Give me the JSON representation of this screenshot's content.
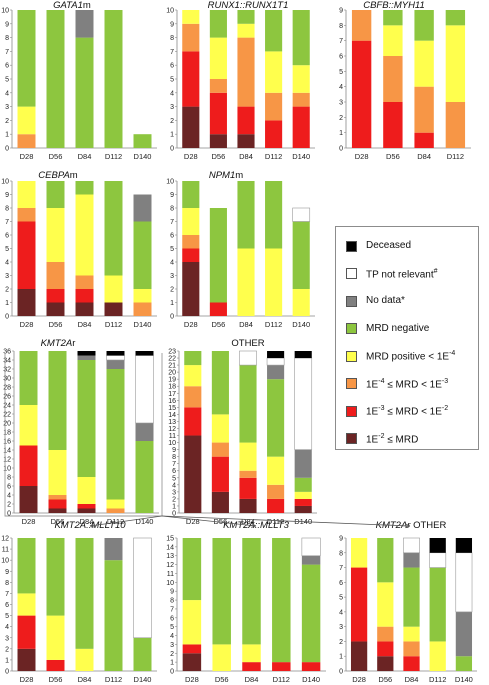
{
  "colors": {
    "Deceased": "#000000",
    "TP not relevant": "#ffffff",
    "No data": "#808080",
    "MRD negative": "#8dc63f",
    "MRD positive < 1E-4": "#ffff4d",
    "1E-4 <= MRD < 1E-3": "#f79646",
    "1E-3 <= MRD < 1E-2": "#ee1c1c",
    "1E-2 <= MRD": "#6b2424"
  },
  "legend": {
    "items": [
      {
        "key": "Deceased",
        "label": "Deceased"
      },
      {
        "key": "TP not relevant",
        "label": "TP not relevant",
        "sup": "#"
      },
      {
        "key": "No data",
        "label": "No data*"
      },
      {
        "key": "MRD negative",
        "label": "MRD negative"
      },
      {
        "key": "MRD positive < 1E-4",
        "label": "MRD positive < 1E",
        "sup": "-4"
      },
      {
        "key": "1E-4 <= MRD < 1E-3",
        "label": "1E",
        "sup": "-4",
        "label2": " ≤ MRD < 1E",
        "sup2": "-3"
      },
      {
        "key": "1E-3 <= MRD < 1E-2",
        "label": "1E",
        "sup": "-3",
        "label2": " ≤ MRD < 1E",
        "sup2": "-2"
      },
      {
        "key": "1E-2 <= MRD",
        "label": "1E",
        "sup": "-2",
        "label2": " ≤ MRD"
      }
    ]
  },
  "chart_data": [
    {
      "type": "bar",
      "stacked": true,
      "title": "GATA1m",
      "title_italic_part": "GATA1",
      "title_suffix": "m",
      "ylim": [
        0,
        10
      ],
      "yticks": [
        0,
        1,
        2,
        3,
        4,
        5,
        6,
        7,
        8,
        9,
        10
      ],
      "categories": [
        "D28",
        "D56",
        "D84",
        "D112",
        "D140"
      ],
      "series": [
        {
          "name": "1E-4 <= MRD < 1E-3",
          "values": [
            1,
            0,
            0,
            0,
            0
          ]
        },
        {
          "name": "MRD positive < 1E-4",
          "values": [
            2,
            0,
            0,
            0,
            0
          ]
        },
        {
          "name": "MRD negative",
          "values": [
            7,
            10,
            8,
            10,
            1
          ]
        },
        {
          "name": "No data",
          "values": [
            0,
            0,
            2,
            0,
            0
          ]
        }
      ]
    },
    {
      "type": "bar",
      "stacked": true,
      "title": "RUNX1::RUNX1T1",
      "title_italic_part": "RUNX1::RUNX1T1",
      "title_suffix": "",
      "ylim": [
        0,
        10
      ],
      "yticks": [
        0,
        1,
        2,
        3,
        4,
        5,
        6,
        7,
        8,
        9,
        10
      ],
      "categories": [
        "D28",
        "D56",
        "D84",
        "D112",
        "D140"
      ],
      "series": [
        {
          "name": "1E-2 <= MRD",
          "values": [
            3,
            1,
            1,
            0,
            0
          ]
        },
        {
          "name": "1E-3 <= MRD < 1E-2",
          "values": [
            4,
            3,
            2,
            2,
            3
          ]
        },
        {
          "name": "1E-4 <= MRD < 1E-3",
          "values": [
            2,
            1,
            5,
            2,
            1
          ]
        },
        {
          "name": "MRD positive < 1E-4",
          "values": [
            1,
            3,
            1,
            3,
            2
          ]
        },
        {
          "name": "MRD negative",
          "values": [
            0,
            2,
            1,
            3,
            4
          ]
        }
      ]
    },
    {
      "type": "bar",
      "stacked": true,
      "title": "CBFB::MYH11",
      "title_italic_part": "CBFB::MYH11",
      "title_suffix": "",
      "ylim": [
        0,
        9
      ],
      "yticks": [
        0,
        1,
        2,
        3,
        4,
        5,
        6,
        7,
        8,
        9
      ],
      "categories": [
        "D28",
        "D56",
        "D84",
        "D112"
      ],
      "series": [
        {
          "name": "1E-3 <= MRD < 1E-2",
          "values": [
            7,
            3,
            1,
            0
          ]
        },
        {
          "name": "1E-4 <= MRD < 1E-3",
          "values": [
            2,
            3,
            3,
            3
          ]
        },
        {
          "name": "MRD positive < 1E-4",
          "values": [
            0,
            2,
            3,
            5
          ]
        },
        {
          "name": "MRD negative",
          "values": [
            0,
            1,
            2,
            1
          ]
        }
      ]
    },
    {
      "type": "bar",
      "stacked": true,
      "title": "CEBPAm",
      "title_italic_part": "CEBPA",
      "title_suffix": "m",
      "ylim": [
        0,
        10
      ],
      "yticks": [
        0,
        1,
        2,
        3,
        4,
        5,
        6,
        7,
        8,
        9,
        10
      ],
      "categories": [
        "D28",
        "D56",
        "D84",
        "D112",
        "D140"
      ],
      "series": [
        {
          "name": "1E-2 <= MRD",
          "values": [
            2,
            1,
            1,
            1,
            0
          ]
        },
        {
          "name": "1E-3 <= MRD < 1E-2",
          "values": [
            5,
            1,
            1,
            0,
            0
          ]
        },
        {
          "name": "1E-4 <= MRD < 1E-3",
          "values": [
            1,
            2,
            1,
            0,
            1
          ]
        },
        {
          "name": "MRD positive < 1E-4",
          "values": [
            2,
            4,
            6,
            2,
            1
          ]
        },
        {
          "name": "MRD negative",
          "values": [
            0,
            2,
            1,
            7,
            5
          ]
        },
        {
          "name": "No data",
          "values": [
            0,
            0,
            0,
            0,
            2
          ]
        }
      ]
    },
    {
      "type": "bar",
      "stacked": true,
      "title": "NPM1m",
      "title_italic_part": "NPM1",
      "title_suffix": "m",
      "ylim": [
        0,
        10
      ],
      "yticks": [
        0,
        1,
        2,
        3,
        4,
        5,
        6,
        7,
        8,
        9,
        10
      ],
      "categories": [
        "D28",
        "D56",
        "D84",
        "D112",
        "D140"
      ],
      "series": [
        {
          "name": "1E-2 <= MRD",
          "values": [
            4,
            0,
            0,
            0,
            0
          ]
        },
        {
          "name": "1E-3 <= MRD < 1E-2",
          "values": [
            1,
            1,
            0,
            0,
            0
          ]
        },
        {
          "name": "1E-4 <= MRD < 1E-3",
          "values": [
            1,
            0,
            0,
            0,
            0
          ]
        },
        {
          "name": "MRD positive < 1E-4",
          "values": [
            2,
            0,
            5,
            5,
            2
          ]
        },
        {
          "name": "MRD negative",
          "values": [
            2,
            7,
            5,
            5,
            5
          ]
        },
        {
          "name": "TP not relevant",
          "values": [
            0,
            0,
            0,
            0,
            1
          ]
        }
      ]
    },
    {
      "type": "bar",
      "stacked": true,
      "title": "KMT2Ar",
      "title_italic_part": "KMT2A",
      "title_suffix": "r",
      "ylim": [
        0,
        36
      ],
      "yticks": [
        0,
        2,
        4,
        6,
        8,
        10,
        12,
        14,
        16,
        18,
        20,
        22,
        24,
        26,
        28,
        30,
        32,
        34,
        36
      ],
      "categories": [
        "D28",
        "D56",
        "D84",
        "D112",
        "D140"
      ],
      "series": [
        {
          "name": "1E-2 <= MRD",
          "values": [
            6,
            1,
            1,
            0,
            0
          ]
        },
        {
          "name": "1E-3 <= MRD < 1E-2",
          "values": [
            9,
            2,
            1,
            0,
            0
          ]
        },
        {
          "name": "1E-4 <= MRD < 1E-3",
          "values": [
            0,
            1,
            0,
            1,
            0
          ]
        },
        {
          "name": "MRD positive < 1E-4",
          "values": [
            9,
            10,
            6,
            2,
            0
          ]
        },
        {
          "name": "MRD negative",
          "values": [
            12,
            22,
            26,
            29,
            16
          ]
        },
        {
          "name": "No data",
          "values": [
            0,
            0,
            1,
            2,
            4
          ]
        },
        {
          "name": "TP not relevant",
          "values": [
            0,
            0,
            0,
            1,
            15
          ]
        },
        {
          "name": "Deceased",
          "values": [
            0,
            0,
            1,
            1,
            1
          ]
        }
      ]
    },
    {
      "type": "bar",
      "stacked": true,
      "title": "OTHER",
      "title_italic_part": "",
      "title_suffix": "OTHER",
      "ylim": [
        0,
        23
      ],
      "yticks": [
        0,
        1,
        2,
        3,
        4,
        5,
        6,
        7,
        8,
        9,
        10,
        11,
        12,
        13,
        14,
        15,
        16,
        17,
        18,
        19,
        20,
        21,
        22,
        23
      ],
      "categories": [
        "D28",
        "D56",
        "D84",
        "D112",
        "D140"
      ],
      "series": [
        {
          "name": "1E-2 <= MRD",
          "values": [
            11,
            3,
            2,
            0,
            1
          ]
        },
        {
          "name": "1E-3 <= MRD < 1E-2",
          "values": [
            4,
            5,
            3,
            2,
            1
          ]
        },
        {
          "name": "1E-4 <= MRD < 1E-3",
          "values": [
            3,
            2,
            1,
            2,
            0
          ]
        },
        {
          "name": "MRD positive < 1E-4",
          "values": [
            3,
            4,
            4,
            4,
            1
          ]
        },
        {
          "name": "MRD negative",
          "values": [
            2,
            9,
            11,
            11,
            2
          ]
        },
        {
          "name": "No data",
          "values": [
            0,
            0,
            0,
            2,
            4
          ]
        },
        {
          "name": "TP not relevant",
          "values": [
            0,
            0,
            2,
            1,
            13
          ]
        },
        {
          "name": "Deceased",
          "values": [
            0,
            0,
            0,
            1,
            1
          ]
        }
      ]
    },
    {
      "type": "bar",
      "stacked": true,
      "title": "KMT2A::MLLT10",
      "title_italic_part": "KMT2A::MLLT10",
      "title_suffix": "",
      "ylim": [
        0,
        12
      ],
      "yticks": [
        0,
        1,
        2,
        3,
        4,
        5,
        6,
        7,
        8,
        9,
        10,
        11,
        12
      ],
      "categories": [
        "D28",
        "D56",
        "D84",
        "D112",
        "D140"
      ],
      "series": [
        {
          "name": "1E-2 <= MRD",
          "values": [
            2,
            0,
            0,
            0,
            0
          ]
        },
        {
          "name": "1E-3 <= MRD < 1E-2",
          "values": [
            3,
            1,
            0,
            0,
            0
          ]
        },
        {
          "name": "MRD positive < 1E-4",
          "values": [
            2,
            4,
            2,
            0,
            0
          ]
        },
        {
          "name": "MRD negative",
          "values": [
            5,
            7,
            10,
            10,
            3
          ]
        },
        {
          "name": "No data",
          "values": [
            0,
            0,
            0,
            2,
            0
          ]
        },
        {
          "name": "TP not relevant",
          "values": [
            0,
            0,
            0,
            0,
            9
          ]
        }
      ]
    },
    {
      "type": "bar",
      "stacked": true,
      "title": "KMT2A::MLLT3",
      "title_italic_part": "KMT2A::MLLT3",
      "title_suffix": "",
      "ylim": [
        0,
        15
      ],
      "yticks": [
        0,
        1,
        2,
        3,
        4,
        5,
        6,
        7,
        8,
        9,
        10,
        11,
        12,
        13,
        14,
        15
      ],
      "categories": [
        "D28",
        "D56",
        "D84",
        "D112",
        "D140"
      ],
      "series": [
        {
          "name": "1E-2 <= MRD",
          "values": [
            2,
            0,
            0,
            0,
            0
          ]
        },
        {
          "name": "1E-3 <= MRD < 1E-2",
          "values": [
            1,
            0,
            1,
            1,
            1
          ]
        },
        {
          "name": "MRD positive < 1E-4",
          "values": [
            5,
            3,
            2,
            0,
            0
          ]
        },
        {
          "name": "MRD negative",
          "values": [
            7,
            12,
            12,
            14,
            11
          ]
        },
        {
          "name": "No data",
          "values": [
            0,
            0,
            0,
            0,
            1
          ]
        },
        {
          "name": "TP not relevant",
          "values": [
            0,
            0,
            0,
            0,
            2
          ]
        }
      ]
    },
    {
      "type": "bar",
      "stacked": true,
      "title": "KMT2Ar OTHER",
      "title_italic_part": "KMT2Ar",
      "title_suffix": " OTHER",
      "ylim": [
        0,
        9
      ],
      "yticks": [
        0,
        1,
        2,
        3,
        4,
        5,
        6,
        7,
        8,
        9
      ],
      "categories": [
        "D28",
        "D56",
        "D84",
        "D112",
        "D140"
      ],
      "series": [
        {
          "name": "1E-2 <= MRD",
          "values": [
            2,
            1,
            0,
            0,
            0
          ]
        },
        {
          "name": "1E-3 <= MRD < 1E-2",
          "values": [
            5,
            1,
            1,
            0,
            0
          ]
        },
        {
          "name": "1E-4 <= MRD < 1E-3",
          "values": [
            0,
            1,
            1,
            0,
            0
          ]
        },
        {
          "name": "MRD positive < 1E-4",
          "values": [
            2,
            3,
            1,
            2,
            0
          ]
        },
        {
          "name": "MRD negative",
          "values": [
            0,
            3,
            4,
            5,
            1
          ]
        },
        {
          "name": "No data",
          "values": [
            0,
            0,
            1,
            0,
            3
          ]
        },
        {
          "name": "TP not relevant",
          "values": [
            0,
            0,
            1,
            1,
            4
          ]
        },
        {
          "name": "Deceased",
          "values": [
            0,
            0,
            0,
            1,
            1
          ]
        }
      ]
    }
  ]
}
